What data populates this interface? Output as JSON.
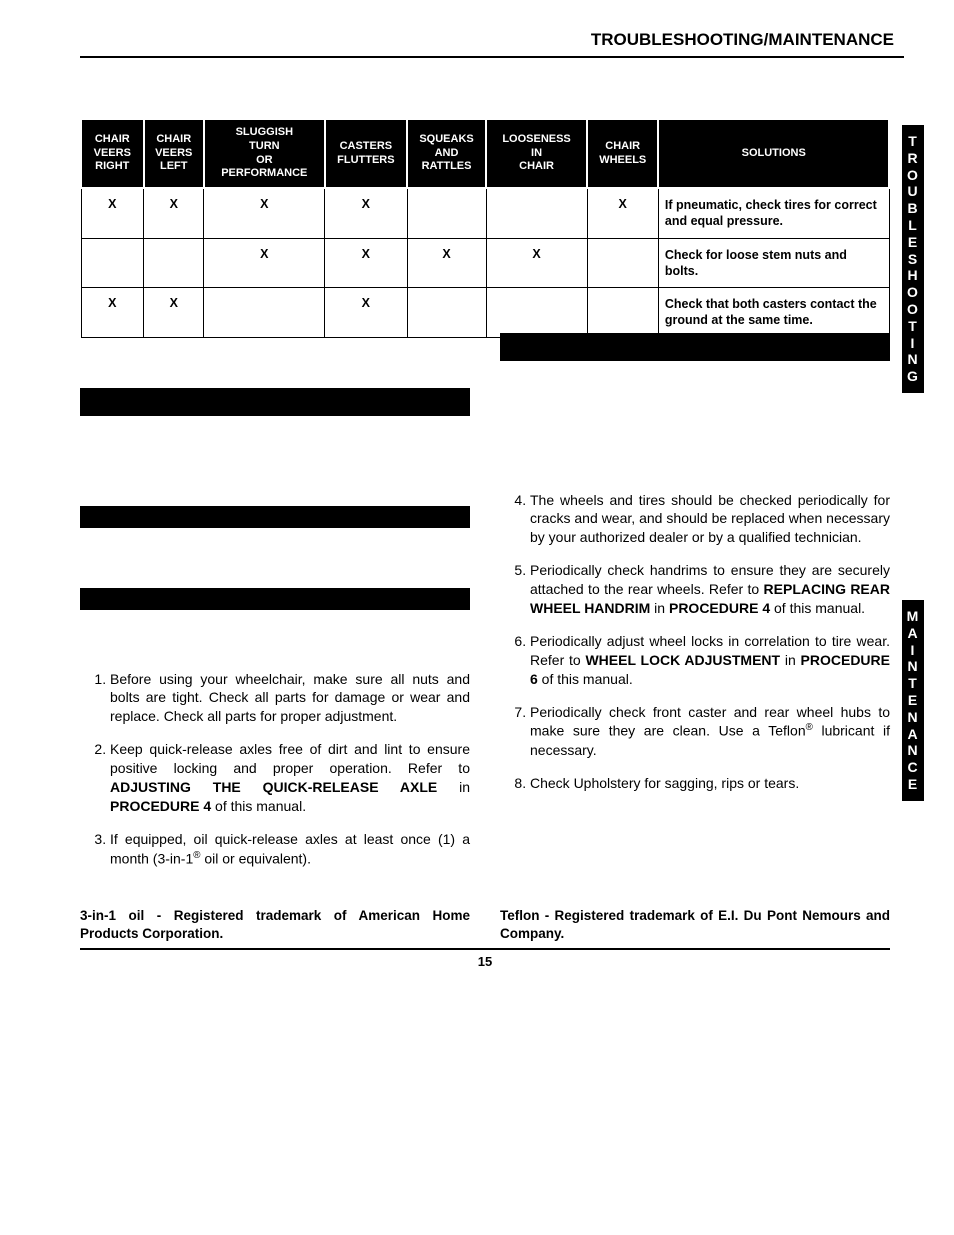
{
  "header": {
    "title": "TROUBLESHOOTING/MAINTENANCE"
  },
  "sidetabs": {
    "tab1": "TROUBLESHOOTING",
    "tab2": "MAINTENANCE"
  },
  "table": {
    "columns": [
      "CHAIR VEERS RIGHT",
      "CHAIR VEERS LEFT",
      "SLUGGISH TURN OR PERFORMANCE",
      "CASTERS FLUTTERS",
      "SQUEAKS AND RATTLES",
      "LOOSENESS IN CHAIR",
      "CHAIR WHEELS",
      "SOLUTIONS"
    ],
    "col_widths": [
      "57",
      "55",
      "110",
      "75",
      "72",
      "92",
      "65",
      "210"
    ],
    "rows": [
      {
        "marks": [
          "X",
          "X",
          "X",
          "X",
          "",
          "",
          "X"
        ],
        "solution": "If pneumatic, check tires for correct and equal pressure."
      },
      {
        "marks": [
          "",
          "",
          "X",
          "X",
          "X",
          "X",
          ""
        ],
        "solution": "Check for loose stem nuts and bolts."
      },
      {
        "marks": [
          "X",
          "X",
          "",
          "X",
          "",
          "",
          ""
        ],
        "solution": "Check that both casters contact the ground at the same time."
      }
    ]
  },
  "left": {
    "items": [
      "Before using your wheelchair, make sure all nuts and bolts are tight. Check all parts for damage or wear and replace. Check all parts for proper adjustment.",
      "Keep quick-release axles free of dirt and lint to ensure positive locking and proper operation. Refer to <b>ADJUSTING THE QUICK-RELEASE AXLE</b> in <b>PROCEDURE 4</b> of this manual.",
      "If equipped, oil quick-release axles at least once (1) a month (3-in-1<sup>®</sup> oil or equivalent)."
    ]
  },
  "right": {
    "start": 4,
    "items": [
      "The wheels and tires should be checked periodically for cracks and wear, and should be replaced when necessary by your authorized dealer or by a qualified technician.",
      "Periodically check handrims to ensure they are securely attached to the rear wheels. Refer to <b>REPLACING REAR WHEEL HANDRIM</b> in <b>PROCEDURE 4</b> of this manual.",
      "Periodically adjust wheel locks in correlation to tire wear. Refer to <b>WHEEL LOCK ADJUSTMENT</b> in <b>PROCEDURE 6</b> of this manual.",
      "Periodically check front caster and rear wheel hubs to make sure they are clean. Use a Teflon<sup>®</sup> lubricant if necessary.",
      "Check Upholstery for sagging, rips or tears."
    ]
  },
  "trademarks": {
    "left": "3-in-1 oil - Registered trademark of American Home Products Corporation.",
    "right": "Teflon - Registered trademark of E.I. Du Pont Nemours and Company."
  },
  "page_number": "15",
  "colors": {
    "black": "#000000",
    "white": "#ffffff"
  },
  "typography": {
    "body_size_pt": 11,
    "header_size_pt": 13,
    "table_header_size_pt": 8
  }
}
